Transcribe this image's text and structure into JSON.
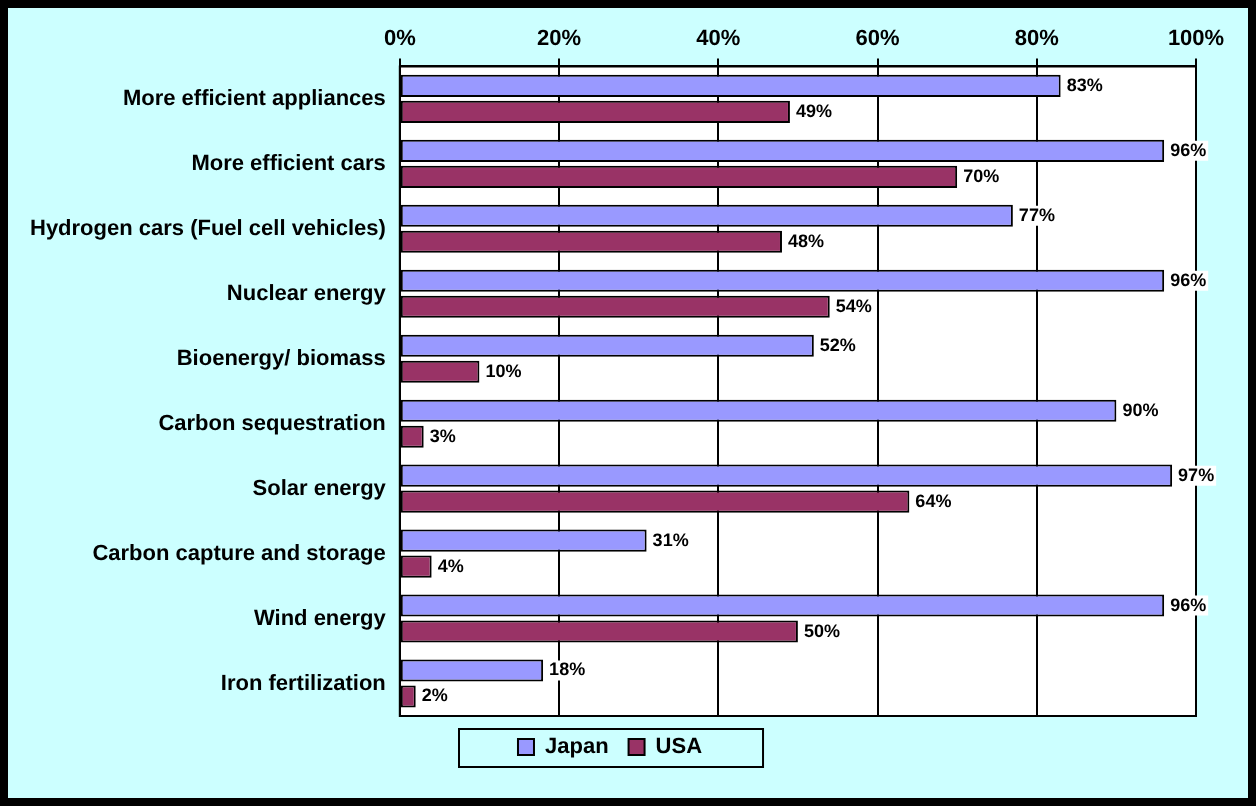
{
  "chart_data": {
    "type": "bar",
    "orientation": "horizontal",
    "categories": [
      "More efficient appliances",
      "More efficient cars",
      "Hydrogen cars (Fuel cell vehicles)",
      "Nuclear energy",
      "Bioenergy/ biomass",
      "Carbon sequestration",
      "Solar energy",
      "Carbon capture and storage",
      "Wind energy",
      "Iron fertilization"
    ],
    "series": [
      {
        "name": "Japan",
        "color": "#9999ff",
        "values": [
          83,
          96,
          77,
          96,
          52,
          90,
          97,
          31,
          96,
          18
        ],
        "value_labels": [
          "83%",
          "96%",
          "77%",
          "96%",
          "52%",
          "90%",
          "97%",
          "31%",
          "96%",
          "18%"
        ]
      },
      {
        "name": "USA",
        "color": "#993366",
        "values": [
          49,
          70,
          48,
          54,
          10,
          3,
          64,
          4,
          50,
          2
        ],
        "value_labels": [
          "49%",
          "70%",
          "48%",
          "54%",
          "10%",
          "3%",
          "64%",
          "4%",
          "50%",
          "2%"
        ]
      }
    ],
    "xlim": [
      0,
      100
    ],
    "xticks": [
      {
        "value": 0,
        "label": "0%"
      },
      {
        "value": 20,
        "label": "20%"
      },
      {
        "value": 40,
        "label": "40%"
      },
      {
        "value": 60,
        "label": "60%"
      },
      {
        "value": 80,
        "label": "80%"
      },
      {
        "value": 100,
        "label": "100%"
      }
    ],
    "grid": "x",
    "legend": "bottom"
  }
}
